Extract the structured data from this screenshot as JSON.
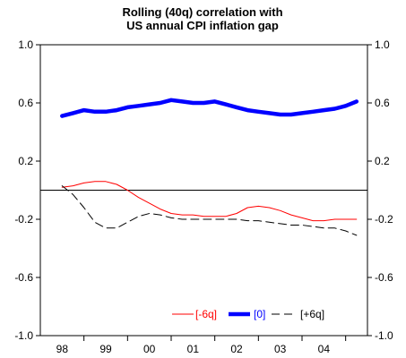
{
  "chart_data": {
    "type": "line",
    "title": "Rolling (40q) correlation with",
    "subtitle": "US annual CPI inflation gap",
    "xlabel": "",
    "ylabel": "",
    "x_tick_labels": [
      "98",
      "99",
      "00",
      "01",
      "02",
      "03",
      "04"
    ],
    "x_range": [
      1997.5,
      2005.0
    ],
    "ylim": [
      -1.0,
      1.0
    ],
    "y_ticks": [
      1.0,
      0.6,
      0.2,
      -0.2,
      -0.6,
      -1.0
    ],
    "y_tick_labels": [
      "1.0",
      "0.6",
      "0.2",
      "-0.2",
      "-0.6",
      "-1.0"
    ],
    "zero_line": true,
    "grid": false,
    "legend_position": "bottom-right",
    "series": [
      {
        "name": "[-6q]",
        "color": "#ff0000",
        "style": "solid-thin",
        "points": [
          [
            1998.0,
            0.02
          ],
          [
            1998.25,
            0.03
          ],
          [
            1998.5,
            0.05
          ],
          [
            1998.75,
            0.06
          ],
          [
            1999.0,
            0.06
          ],
          [
            1999.25,
            0.04
          ],
          [
            1999.5,
            0.0
          ],
          [
            1999.75,
            -0.05
          ],
          [
            2000.0,
            -0.09
          ],
          [
            2000.25,
            -0.13
          ],
          [
            2000.5,
            -0.16
          ],
          [
            2000.75,
            -0.17
          ],
          [
            2001.0,
            -0.17
          ],
          [
            2001.25,
            -0.18
          ],
          [
            2001.5,
            -0.18
          ],
          [
            2001.75,
            -0.18
          ],
          [
            2002.0,
            -0.16
          ],
          [
            2002.25,
            -0.12
          ],
          [
            2002.5,
            -0.11
          ],
          [
            2002.75,
            -0.12
          ],
          [
            2003.0,
            -0.14
          ],
          [
            2003.25,
            -0.17
          ],
          [
            2003.5,
            -0.19
          ],
          [
            2003.75,
            -0.21
          ],
          [
            2004.0,
            -0.21
          ],
          [
            2004.25,
            -0.2
          ],
          [
            2004.5,
            -0.2
          ],
          [
            2004.75,
            -0.2
          ]
        ]
      },
      {
        "name": "[0]",
        "color": "#0000ff",
        "style": "solid-thick",
        "points": [
          [
            1998.0,
            0.51
          ],
          [
            1998.25,
            0.53
          ],
          [
            1998.5,
            0.55
          ],
          [
            1998.75,
            0.54
          ],
          [
            1999.0,
            0.54
          ],
          [
            1999.25,
            0.55
          ],
          [
            1999.5,
            0.57
          ],
          [
            1999.75,
            0.58
          ],
          [
            2000.0,
            0.59
          ],
          [
            2000.25,
            0.6
          ],
          [
            2000.5,
            0.62
          ],
          [
            2000.75,
            0.61
          ],
          [
            2001.0,
            0.6
          ],
          [
            2001.25,
            0.6
          ],
          [
            2001.5,
            0.61
          ],
          [
            2001.75,
            0.59
          ],
          [
            2002.0,
            0.57
          ],
          [
            2002.25,
            0.55
          ],
          [
            2002.5,
            0.54
          ],
          [
            2002.75,
            0.53
          ],
          [
            2003.0,
            0.52
          ],
          [
            2003.25,
            0.52
          ],
          [
            2003.5,
            0.53
          ],
          [
            2003.75,
            0.54
          ],
          [
            2004.0,
            0.55
          ],
          [
            2004.25,
            0.56
          ],
          [
            2004.5,
            0.58
          ],
          [
            2004.75,
            0.61
          ]
        ]
      },
      {
        "name": "[+6q]",
        "color": "#000000",
        "style": "dashed",
        "points": [
          [
            1998.0,
            0.03
          ],
          [
            1998.25,
            -0.03
          ],
          [
            1998.5,
            -0.12
          ],
          [
            1998.75,
            -0.22
          ],
          [
            1999.0,
            -0.26
          ],
          [
            1999.25,
            -0.26
          ],
          [
            1999.5,
            -0.22
          ],
          [
            1999.75,
            -0.18
          ],
          [
            2000.0,
            -0.16
          ],
          [
            2000.25,
            -0.17
          ],
          [
            2000.5,
            -0.19
          ],
          [
            2000.75,
            -0.2
          ],
          [
            2001.0,
            -0.2
          ],
          [
            2001.25,
            -0.2
          ],
          [
            2001.5,
            -0.2
          ],
          [
            2001.75,
            -0.2
          ],
          [
            2002.0,
            -0.2
          ],
          [
            2002.25,
            -0.21
          ],
          [
            2002.5,
            -0.21
          ],
          [
            2002.75,
            -0.22
          ],
          [
            2003.0,
            -0.23
          ],
          [
            2003.25,
            -0.24
          ],
          [
            2003.5,
            -0.24
          ],
          [
            2003.75,
            -0.25
          ],
          [
            2004.0,
            -0.26
          ],
          [
            2004.25,
            -0.26
          ],
          [
            2004.5,
            -0.28
          ],
          [
            2004.75,
            -0.31
          ]
        ]
      }
    ]
  }
}
